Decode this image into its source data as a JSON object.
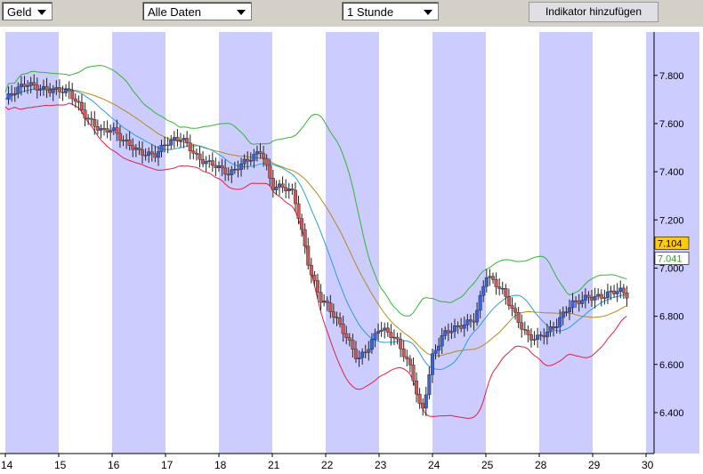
{
  "toolbar": {
    "price_type": "Geld",
    "range": "Alle Daten",
    "interval": "1 Stunde",
    "add_indicator": "Indikator hinzufügen"
  },
  "colors": {
    "toolbar_bg": "#d4d0c8",
    "band": "#ccccff",
    "bull": "#3a63d6",
    "bear": "#c85a5a",
    "bb_upper": "#33b533",
    "bb_lower": "#e02040",
    "ma_fast": "#2aa0d8",
    "ma_slow": "#b58a1a"
  },
  "chart_data": {
    "type": "candlestick",
    "x_tick_labels": [
      "14",
      "15",
      "16",
      "17",
      "18",
      "21",
      "22",
      "23",
      "24",
      "25",
      "28",
      "29",
      "30"
    ],
    "y_tick_labels": [
      "7.800",
      "7.600",
      "7.400",
      "7.200",
      "7.000",
      "6.800",
      "6.600",
      "6.400"
    ],
    "y_ticks": [
      7.8,
      7.6,
      7.4,
      7.2,
      7.0,
      6.8,
      6.6,
      6.4
    ],
    "ylim": [
      6.23,
      7.98
    ],
    "current_bid": "7.104",
    "current_other": "7.041",
    "close_path": [
      [
        0,
        7.7
      ],
      [
        0.4,
        7.76
      ],
      [
        0.8,
        7.75
      ],
      [
        1.0,
        7.74
      ],
      [
        1.2,
        7.72
      ],
      [
        1.5,
        7.63
      ],
      [
        1.8,
        7.58
      ],
      [
        2.0,
        7.58
      ],
      [
        2.2,
        7.52
      ],
      [
        2.5,
        7.48
      ],
      [
        2.8,
        7.48
      ],
      [
        3.0,
        7.52
      ],
      [
        3.3,
        7.53
      ],
      [
        3.6,
        7.46
      ],
      [
        3.9,
        7.44
      ],
      [
        4.0,
        7.42
      ],
      [
        4.2,
        7.38
      ],
      [
        4.5,
        7.44
      ],
      [
        4.8,
        7.5
      ],
      [
        5.0,
        7.34
      ],
      [
        5.2,
        7.33
      ],
      [
        5.4,
        7.3
      ],
      [
        5.7,
        7.0
      ],
      [
        5.9,
        6.88
      ],
      [
        6.0,
        6.86
      ],
      [
        6.2,
        6.78
      ],
      [
        6.4,
        6.7
      ],
      [
        6.6,
        6.62
      ],
      [
        6.8,
        6.68
      ],
      [
        7.0,
        6.76
      ],
      [
        7.3,
        6.7
      ],
      [
        7.6,
        6.58
      ],
      [
        7.8,
        6.4
      ],
      [
        8.0,
        6.64
      ],
      [
        8.2,
        6.72
      ],
      [
        8.5,
        6.75
      ],
      [
        8.8,
        6.8
      ],
      [
        9.0,
        6.98
      ],
      [
        9.3,
        6.9
      ],
      [
        9.6,
        6.78
      ],
      [
        9.8,
        6.72
      ],
      [
        10.0,
        6.72
      ],
      [
        10.3,
        6.75
      ],
      [
        10.6,
        6.85
      ],
      [
        10.9,
        6.89
      ],
      [
        11.2,
        6.88
      ],
      [
        11.5,
        6.9
      ],
      [
        11.7,
        6.88
      ]
    ]
  }
}
